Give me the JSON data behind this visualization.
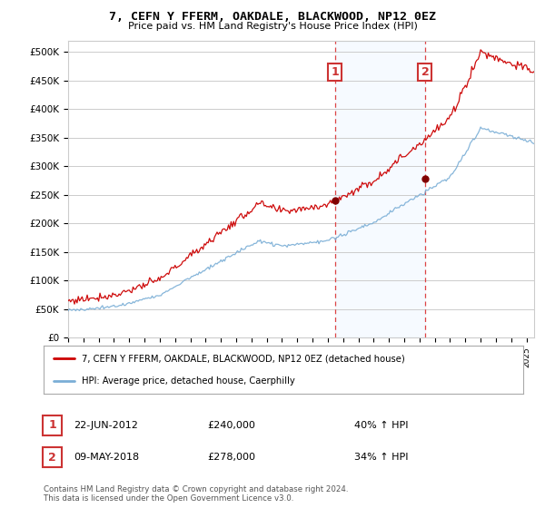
{
  "title": "7, CEFN Y FFERM, OAKDALE, BLACKWOOD, NP12 0EZ",
  "subtitle": "Price paid vs. HM Land Registry's House Price Index (HPI)",
  "legend_line1": "7, CEFN Y FFERM, OAKDALE, BLACKWOOD, NP12 0EZ (detached house)",
  "legend_line2": "HPI: Average price, detached house, Caerphilly",
  "annotation1_label": "1",
  "annotation1_date": "22-JUN-2012",
  "annotation1_price": "£240,000",
  "annotation1_hpi": "40% ↑ HPI",
  "annotation2_label": "2",
  "annotation2_date": "09-MAY-2018",
  "annotation2_price": "£278,000",
  "annotation2_hpi": "34% ↑ HPI",
  "footnote": "Contains HM Land Registry data © Crown copyright and database right 2024.\nThis data is licensed under the Open Government Licence v3.0.",
  "red_color": "#cc0000",
  "blue_color": "#7aaed6",
  "background_color": "#ffffff",
  "plot_bg_color": "#ffffff",
  "shaded_color": "#ddeeff",
  "grid_color": "#cccccc",
  "ylim": [
    0,
    520000
  ],
  "yticks": [
    0,
    50000,
    100000,
    150000,
    200000,
    250000,
    300000,
    350000,
    400000,
    450000,
    500000
  ],
  "ytick_labels": [
    "£0",
    "£50K",
    "£100K",
    "£150K",
    "£200K",
    "£250K",
    "£300K",
    "£350K",
    "£400K",
    "£450K",
    "£500K"
  ],
  "sale1_x": 2012.47,
  "sale1_y": 240000,
  "sale2_x": 2018.36,
  "sale2_y": 278000,
  "shade_x1": 2012.47,
  "shade_x2": 2018.36,
  "vline1_x": 2012.47,
  "vline2_x": 2018.36,
  "xmin": 1995.0,
  "xmax": 2025.5
}
